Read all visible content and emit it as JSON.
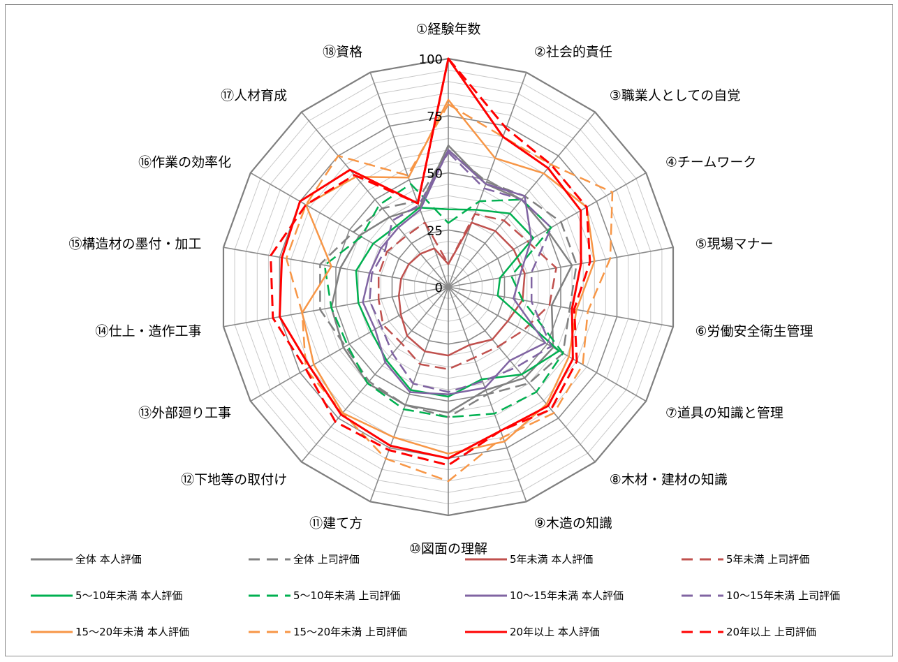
{
  "chart_data": {
    "type": "radar",
    "title": "",
    "categories": [
      "①経験年数",
      "②社会的責任",
      "③職業人としての自覚",
      "④チームワーク",
      "⑤現場マナー",
      "⑥労働安全衛生管理",
      "⑦道具の知識と管理",
      "⑧木材・建材の知識",
      "⑨木造の知識",
      "⑩図面の理解",
      "⑪建て方",
      "⑫下地等の取付け",
      "⑬外部廻り工事",
      "⑭仕上・造作工事",
      "⑮構造材の墨付・加工",
      "⑯作業の効率化",
      "⑰人材育成",
      "⑱資格"
    ],
    "rlim": [
      0,
      100
    ],
    "ticks": [
      "0",
      "25",
      "50",
      "75",
      "100"
    ],
    "tick_values": [
      0,
      25,
      50,
      75,
      100
    ],
    "grid_step": 5,
    "legend_position": "bottom",
    "series": [
      {
        "name": "全体 本人評価",
        "color": "#808080",
        "dashed": false,
        "values": [
          62,
          48,
          50,
          50,
          55,
          46,
          53,
          52,
          48,
          55,
          55,
          55,
          53,
          52,
          48,
          45,
          40,
          37
        ]
      },
      {
        "name": "全体 上司評価",
        "color": "#808080",
        "dashed": true,
        "values": [
          60,
          49,
          52,
          57,
          57,
          54,
          58,
          55,
          50,
          57,
          55,
          54,
          52,
          57,
          57,
          48,
          45,
          40
        ]
      },
      {
        "name": "5年未満 本人評価",
        "color": "#c0504d",
        "dashed": false,
        "values": [
          10,
          30,
          32,
          33,
          34,
          33,
          30,
          30,
          27,
          30,
          30,
          28,
          24,
          22,
          21,
          20,
          19,
          18
        ]
      },
      {
        "name": "5年未満 上司評価",
        "color": "#c0504d",
        "dashed": true,
        "values": [
          10,
          34,
          38,
          40,
          48,
          45,
          38,
          34,
          33,
          36,
          36,
          32,
          33,
          31,
          31,
          31,
          29,
          30
        ]
      },
      {
        "name": "5～10年未満 本人評価",
        "color": "#00b050",
        "dashed": false,
        "values": [
          34,
          36,
          42,
          43,
          23,
          22,
          56,
          50,
          43,
          48,
          48,
          42,
          39,
          40,
          41,
          38,
          35,
          37
        ]
      },
      {
        "name": "5～10年未満 上司評価",
        "color": "#00b050",
        "dashed": true,
        "values": [
          28,
          40,
          50,
          52,
          28,
          33,
          58,
          60,
          59,
          57,
          57,
          55,
          51,
          52,
          55,
          44,
          47,
          48
        ]
      },
      {
        "name": "10～15年未満 本人評価",
        "color": "#8064a2",
        "dashed": false,
        "values": [
          60,
          48,
          52,
          42,
          32,
          29,
          49,
          42,
          47,
          47,
          49,
          43,
          37,
          38,
          35,
          34,
          34,
          36
        ]
      },
      {
        "name": "10～15年未満 上司評価",
        "color": "#8064a2",
        "dashed": true,
        "values": [
          59,
          46,
          50,
          52,
          37,
          37,
          52,
          46,
          44,
          46,
          45,
          38,
          34,
          35,
          34,
          32,
          38,
          38
        ]
      },
      {
        "name": "15～20年未満 本人評価",
        "color": "#f79646",
        "dashed": false,
        "values": [
          82,
          60,
          65,
          70,
          65,
          57,
          61,
          67,
          72,
          73,
          70,
          72,
          68,
          65,
          52,
          72,
          63,
          51
        ]
      },
      {
        "name": "15～20年未満 上司評価",
        "color": "#f79646",
        "dashed": true,
        "values": [
          80,
          70,
          70,
          83,
          72,
          62,
          68,
          72,
          70,
          85,
          80,
          72,
          72,
          65,
          72,
          72,
          75,
          52
        ]
      },
      {
        "name": "20年以上 本人評価",
        "color": "#ff0000",
        "dashed": false,
        "values": [
          100,
          70,
          68,
          67,
          59,
          55,
          63,
          68,
          67,
          75,
          74,
          73,
          70,
          75,
          74,
          75,
          67,
          39
        ]
      },
      {
        "name": "20年以上 上司評価",
        "color": "#ff0000",
        "dashed": true,
        "values": [
          100,
          74,
          70,
          70,
          63,
          56,
          65,
          70,
          67,
          78,
          76,
          77,
          72,
          78,
          79,
          72,
          64,
          39
        ]
      }
    ]
  }
}
